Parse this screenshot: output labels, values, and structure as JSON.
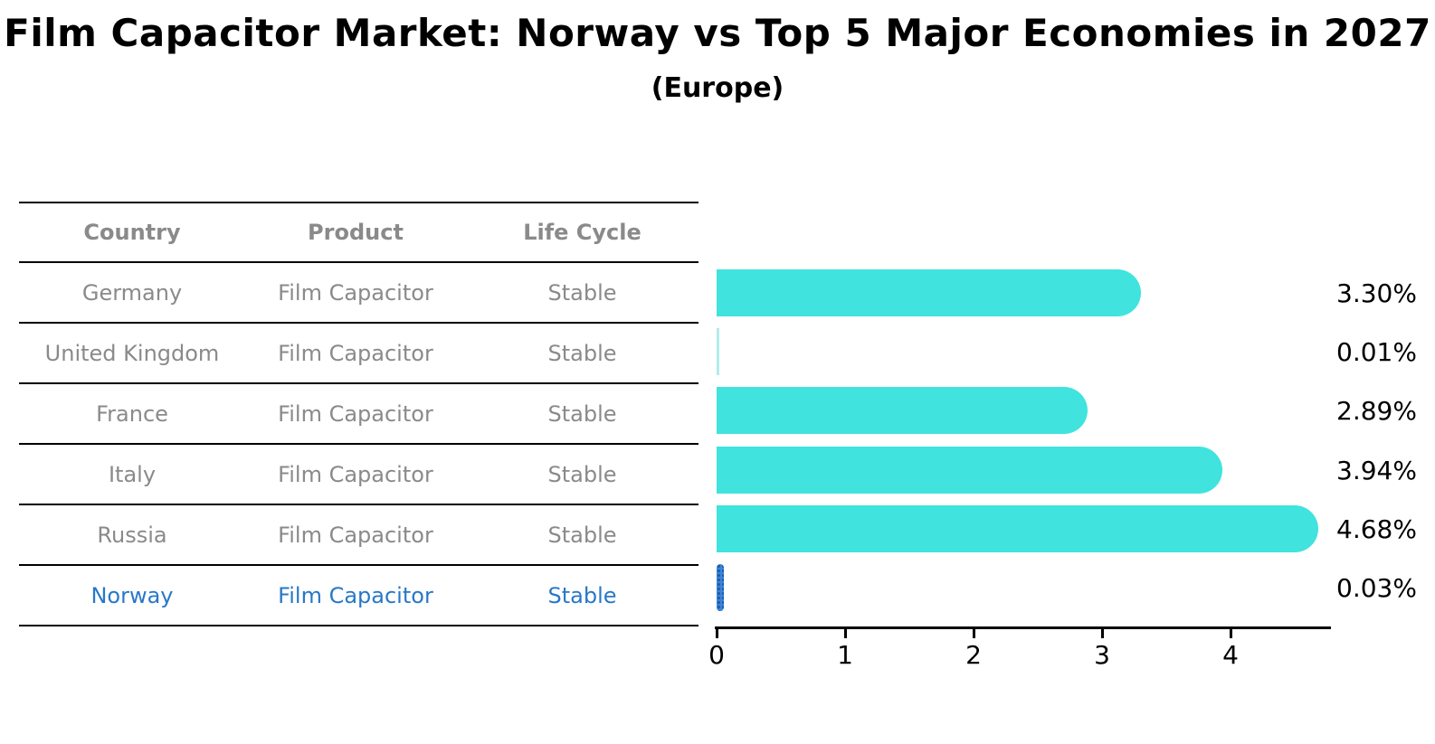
{
  "title": "Film Capacitor Market: Norway vs Top 5 Major Economies in 2027",
  "subtitle": "(Europe)",
  "table": {
    "headers": [
      "Country",
      "Product",
      "Life Cycle"
    ],
    "rows": [
      {
        "country": "Germany",
        "product": "Film Capacitor",
        "life_cycle": "Stable",
        "highlighted": false
      },
      {
        "country": "United Kingdom",
        "product": "Film Capacitor",
        "life_cycle": "Stable",
        "highlighted": false
      },
      {
        "country": "France",
        "product": "Film Capacitor",
        "life_cycle": "Stable",
        "highlighted": false
      },
      {
        "country": "Italy",
        "product": "Film Capacitor",
        "life_cycle": "Stable",
        "highlighted": false
      },
      {
        "country": "Russia",
        "product": "Film Capacitor",
        "life_cycle": "Stable",
        "highlighted": false
      },
      {
        "country": "Norway",
        "product": "Film Capacitor",
        "life_cycle": "Stable",
        "highlighted": true
      }
    ]
  },
  "chart_data": {
    "type": "bar",
    "orientation": "horizontal",
    "categories": [
      "Germany",
      "United Kingdom",
      "France",
      "Italy",
      "Russia",
      "Norway"
    ],
    "values": [
      3.3,
      0.01,
      2.89,
      3.94,
      4.68,
      0.03
    ],
    "value_labels": [
      "3.30%",
      "0.01%",
      "2.89%",
      "3.94%",
      "4.68%",
      "0.03%"
    ],
    "x_ticks": [
      "0",
      "1",
      "2",
      "3",
      "4"
    ],
    "xlim": [
      0,
      4.77
    ],
    "grid": false,
    "legend": "none",
    "bar_color": "#40e3dd",
    "tiny_bar_color": "#b0ecea",
    "highlight_index": 5,
    "highlight_bar_color": "#3d83d8",
    "highlight_dot_color": "#1a5fa8",
    "text_gray": "#8a8a8a",
    "highlight_text_color": "#2878c8"
  }
}
